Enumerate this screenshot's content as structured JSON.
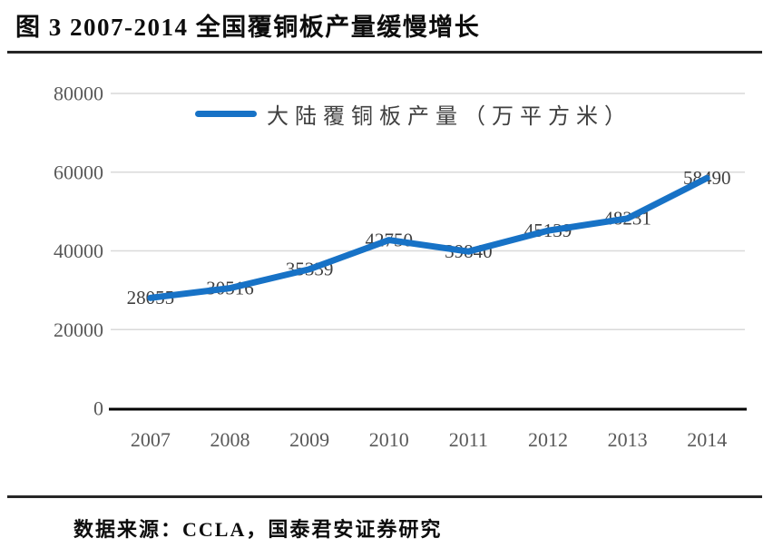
{
  "title": "图 3 2007-2014 全国覆铜板产量缓慢增长",
  "source": "数据来源：CCLA，国泰君安证券研究",
  "chart_data": {
    "type": "line",
    "categories": [
      "2007",
      "2008",
      "2009",
      "2010",
      "2011",
      "2012",
      "2013",
      "2014"
    ],
    "series": [
      {
        "name": "大陆覆铜板产量（万平方米）",
        "values": [
          28055,
          30516,
          35339,
          42750,
          39840,
          45139,
          48231,
          58490
        ]
      }
    ],
    "title": "",
    "xlabel": "",
    "ylabel": "",
    "ylim": [
      0,
      80000
    ],
    "yticks": [
      0,
      20000,
      40000,
      60000,
      80000
    ],
    "grid": true,
    "legend_position": "top-center",
    "data_label_position": "center"
  },
  "colors": {
    "line": "#1772c6",
    "grid": "#d9d9d9",
    "axis": "#000000",
    "tick_label": "#595959",
    "data_label": "#3f3f3f",
    "legend_text": "#404040"
  }
}
